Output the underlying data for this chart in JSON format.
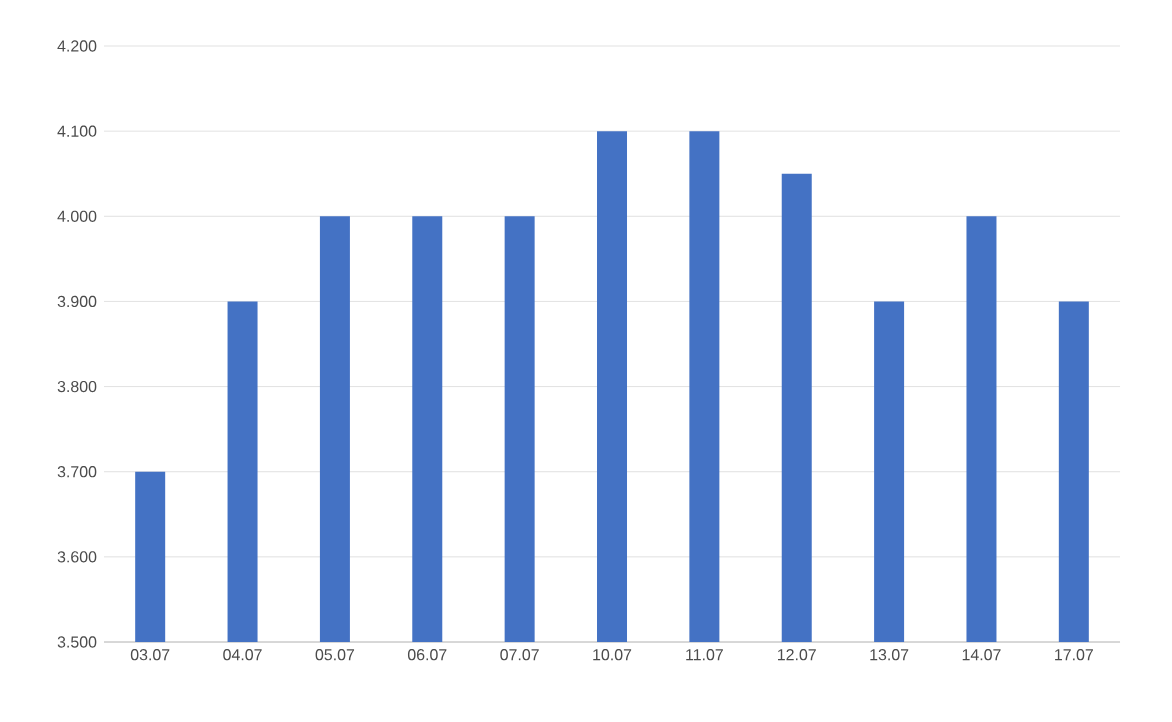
{
  "chart_data": {
    "type": "bar",
    "categories": [
      "03.07",
      "04.07",
      "05.07",
      "06.07",
      "07.07",
      "10.07",
      "11.07",
      "12.07",
      "13.07",
      "14.07",
      "17.07"
    ],
    "values": [
      3.7,
      3.9,
      4.0,
      4.0,
      4.0,
      4.1,
      4.1,
      4.05,
      3.9,
      4.0,
      3.9
    ],
    "color": "#4472c4",
    "ylim": [
      3.5,
      4.2
    ],
    "yticks": [
      {
        "value": 3.5,
        "label": "3.500"
      },
      {
        "value": 3.6,
        "label": "3.600"
      },
      {
        "value": 3.7,
        "label": "3.700"
      },
      {
        "value": 3.8,
        "label": "3.800"
      },
      {
        "value": 3.9,
        "label": "3.900"
      },
      {
        "value": 4.0,
        "label": "4.000"
      },
      {
        "value": 4.1,
        "label": "4.100"
      },
      {
        "value": 4.2,
        "label": "4.200"
      }
    ],
    "grid": "y"
  }
}
